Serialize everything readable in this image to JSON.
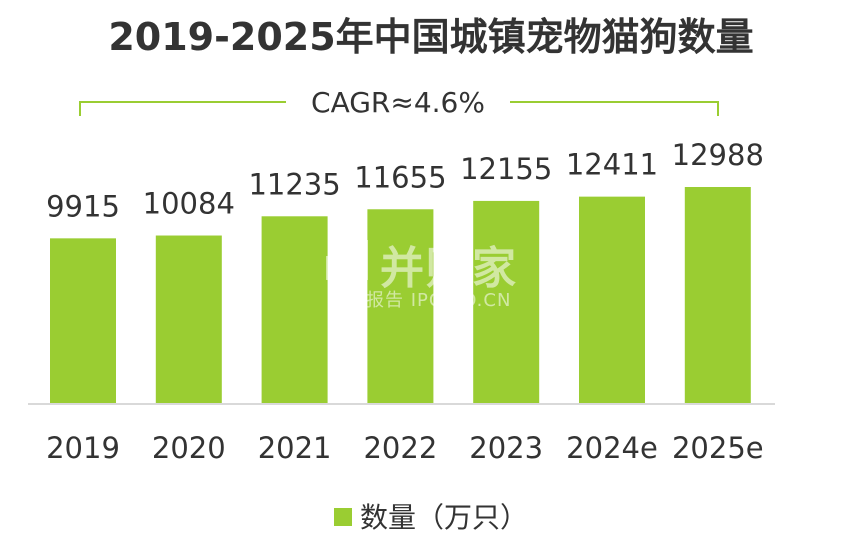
{
  "title": "2019-2025年中国城镇宠物猫狗数量",
  "annotation": "CAGR≈4.6%",
  "legend_label": "数量（万只）",
  "watermark": {
    "main": "并购家",
    "sub": "行业报告 IPOIPO.CN"
  },
  "colors": {
    "bar": "#9acd32",
    "text": "#333333",
    "axis": "#d9d9d9",
    "bracket": "#9acd32"
  },
  "chart_data": {
    "type": "bar",
    "title": "2019-2025年中国城镇宠物猫狗数量",
    "categories": [
      "2019",
      "2020",
      "2021",
      "2022",
      "2023",
      "2024e",
      "2025e"
    ],
    "series": [
      {
        "name": "数量（万只）",
        "values": [
          9915,
          10084,
          11235,
          11655,
          12155,
          12411,
          12988
        ]
      }
    ],
    "ylim": [
      0,
      13600
    ],
    "grid": false,
    "legend_position": "bottom"
  }
}
